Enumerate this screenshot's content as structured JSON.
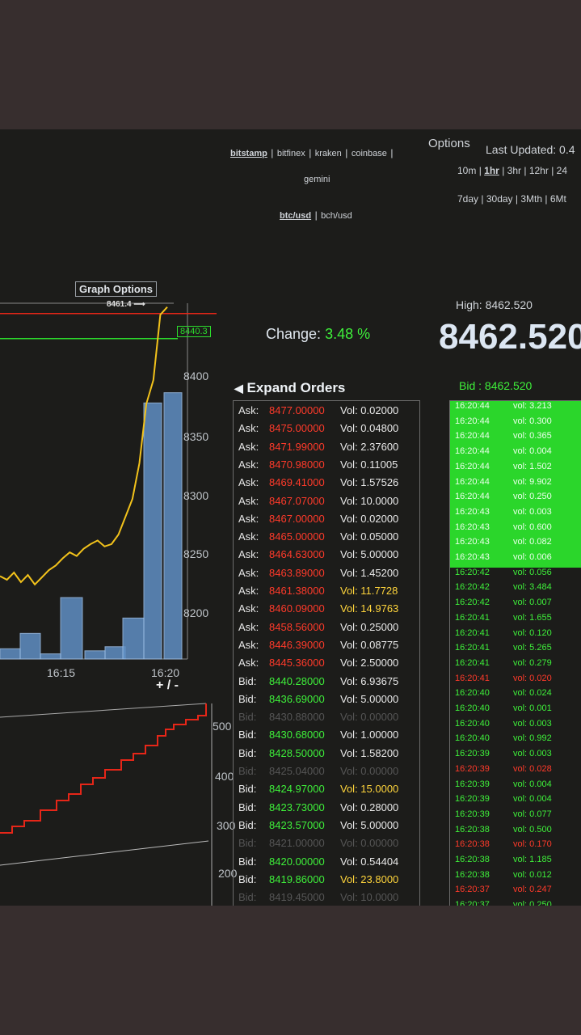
{
  "exchanges": [
    "bitstamp",
    "bitfinex",
    "kraken",
    "coinbase",
    "gemini"
  ],
  "pairs": [
    "btc/usd",
    "bch/usd"
  ],
  "options_label": "Options",
  "last_updated": "Last Updated: 0.4",
  "timeframes_row1": [
    "10m",
    "1hr",
    "3hr",
    "12hr",
    "24"
  ],
  "timeframes_row2": [
    "7day",
    "30day",
    "3Mth",
    "6Mt"
  ],
  "graph": {
    "options_label": "Graph Options",
    "pointer_label": "8461.4 ⟶",
    "price_tag": "8440.3",
    "zoom_label": "+ / -",
    "price_ticks": [
      "8400",
      "8350",
      "8300",
      "8250",
      "8200"
    ],
    "time_ticks": [
      "16:15",
      "16:20"
    ],
    "depth_ticks": [
      "500",
      "400",
      "300",
      "200"
    ]
  },
  "chart_data": {
    "type": "line",
    "xlabel": "",
    "ylabel": "",
    "x_ticks": [
      "16:15",
      "16:20"
    ],
    "y_ticks": [
      8400,
      8350,
      8300,
      8250,
      8200
    ],
    "price_series": [
      8235,
      8232,
      8238,
      8230,
      8236,
      8228,
      8234,
      8240,
      8244,
      8250,
      8255,
      8252,
      8258,
      8262,
      8265,
      8260,
      8262,
      8270,
      8285,
      8300,
      8330,
      8380,
      8400,
      8455,
      8461.4
    ],
    "reference_lines": [
      8461.4,
      8440.3
    ],
    "volume_bars": [
      10,
      25,
      5,
      60,
      8,
      12,
      40,
      250,
      260
    ]
  },
  "summary": {
    "high_label": "High: 8462.520",
    "change_label": "Change:",
    "change_value": "3.48 %",
    "last_price": "8462.520",
    "bid_label": "Bid : 8462.520"
  },
  "orders": {
    "header": "Expand Orders",
    "rows": [
      {
        "type": "Ask:",
        "price": "8477.00000",
        "vol": "Vol: 0.02000",
        "side": "ask",
        "dim": false,
        "big": false
      },
      {
        "type": "Ask:",
        "price": "8475.00000",
        "vol": "Vol: 0.04800",
        "side": "ask",
        "dim": false,
        "big": false
      },
      {
        "type": "Ask:",
        "price": "8471.99000",
        "vol": "Vol: 2.37600",
        "side": "ask",
        "dim": false,
        "big": false
      },
      {
        "type": "Ask:",
        "price": "8470.98000",
        "vol": "Vol: 0.11005",
        "side": "ask",
        "dim": false,
        "big": false
      },
      {
        "type": "Ask:",
        "price": "8469.41000",
        "vol": "Vol: 1.57526",
        "side": "ask",
        "dim": false,
        "big": false
      },
      {
        "type": "Ask:",
        "price": "8467.07000",
        "vol": "Vol: 10.0000",
        "side": "ask",
        "dim": false,
        "big": false
      },
      {
        "type": "Ask:",
        "price": "8467.00000",
        "vol": "Vol: 0.02000",
        "side": "ask",
        "dim": false,
        "big": false
      },
      {
        "type": "Ask:",
        "price": "8465.00000",
        "vol": "Vol: 0.05000",
        "side": "ask",
        "dim": false,
        "big": false
      },
      {
        "type": "Ask:",
        "price": "8464.63000",
        "vol": "Vol: 5.00000",
        "side": "ask",
        "dim": false,
        "big": false
      },
      {
        "type": "Ask:",
        "price": "8463.89000",
        "vol": "Vol: 1.45200",
        "side": "ask",
        "dim": false,
        "big": false
      },
      {
        "type": "Ask:",
        "price": "8461.38000",
        "vol": "Vol: 11.7728",
        "side": "ask",
        "dim": false,
        "big": true
      },
      {
        "type": "Ask:",
        "price": "8460.09000",
        "vol": "Vol: 14.9763",
        "side": "ask",
        "dim": false,
        "big": true
      },
      {
        "type": "Ask:",
        "price": "8458.56000",
        "vol": "Vol: 0.25000",
        "side": "ask",
        "dim": false,
        "big": false
      },
      {
        "type": "Ask:",
        "price": "8446.39000",
        "vol": "Vol: 0.08775",
        "side": "ask",
        "dim": false,
        "big": false
      },
      {
        "type": "Ask:",
        "price": "8445.36000",
        "vol": "Vol: 2.50000",
        "side": "ask",
        "dim": false,
        "big": false
      },
      {
        "type": "Bid:",
        "price": "8440.28000",
        "vol": "Vol: 6.93675",
        "side": "bid",
        "dim": false,
        "big": false
      },
      {
        "type": "Bid:",
        "price": "8436.69000",
        "vol": "Vol: 5.00000",
        "side": "bid",
        "dim": false,
        "big": false
      },
      {
        "type": "Bid:",
        "price": "8430.88000",
        "vol": "Vol: 0.00000",
        "side": "bid",
        "dim": true,
        "big": false
      },
      {
        "type": "Bid:",
        "price": "8430.68000",
        "vol": "Vol: 1.00000",
        "side": "bid",
        "dim": false,
        "big": false
      },
      {
        "type": "Bid:",
        "price": "8428.50000",
        "vol": "Vol: 1.58200",
        "side": "bid",
        "dim": false,
        "big": false
      },
      {
        "type": "Bid:",
        "price": "8425.04000",
        "vol": "Vol: 0.00000",
        "side": "bid",
        "dim": true,
        "big": false
      },
      {
        "type": "Bid:",
        "price": "8424.97000",
        "vol": "Vol: 15.0000",
        "side": "bid",
        "dim": false,
        "big": true
      },
      {
        "type": "Bid:",
        "price": "8423.73000",
        "vol": "Vol: 0.28000",
        "side": "bid",
        "dim": false,
        "big": false
      },
      {
        "type": "Bid:",
        "price": "8423.57000",
        "vol": "Vol: 5.00000",
        "side": "bid",
        "dim": false,
        "big": false
      },
      {
        "type": "Bid:",
        "price": "8421.00000",
        "vol": "Vol: 0.00000",
        "side": "bid",
        "dim": true,
        "big": false
      },
      {
        "type": "Bid:",
        "price": "8420.00000",
        "vol": "Vol: 0.54404",
        "side": "bid",
        "dim": false,
        "big": false
      },
      {
        "type": "Bid:",
        "price": "8419.86000",
        "vol": "Vol: 23.8000",
        "side": "bid",
        "dim": false,
        "big": true
      },
      {
        "type": "Bid:",
        "price": "8419.45000",
        "vol": "Vol: 10.0000",
        "side": "bid",
        "dim": true,
        "big": false
      }
    ]
  },
  "trades": [
    {
      "time": "16:20:44",
      "vol": "vol: 3.213",
      "side": "buy",
      "hl": true
    },
    {
      "time": "16:20:44",
      "vol": "vol: 0.300",
      "side": "buy",
      "hl": true
    },
    {
      "time": "16:20:44",
      "vol": "vol: 0.365",
      "side": "buy",
      "hl": true
    },
    {
      "time": "16:20:44",
      "vol": "vol: 0.004",
      "side": "buy",
      "hl": true
    },
    {
      "time": "16:20:44",
      "vol": "vol: 1.502",
      "side": "buy",
      "hl": true
    },
    {
      "time": "16:20:44",
      "vol": "vol: 9.902",
      "side": "buy",
      "hl": true
    },
    {
      "time": "16:20:44",
      "vol": "vol: 0.250",
      "side": "buy",
      "hl": true
    },
    {
      "time": "16:20:43",
      "vol": "vol: 0.003",
      "side": "buy",
      "hl": true
    },
    {
      "time": "16:20:43",
      "vol": "vol: 0.600",
      "side": "buy",
      "hl": true
    },
    {
      "time": "16:20:43",
      "vol": "vol: 0.082",
      "side": "buy",
      "hl": true
    },
    {
      "time": "16:20:43",
      "vol": "vol: 0.006",
      "side": "buy",
      "hl": true
    },
    {
      "time": "16:20:42",
      "vol": "vol: 0.056",
      "side": "buy",
      "hl": false
    },
    {
      "time": "16:20:42",
      "vol": "vol: 3.484",
      "side": "buy",
      "hl": false
    },
    {
      "time": "16:20:42",
      "vol": "vol: 0.007",
      "side": "buy",
      "hl": false
    },
    {
      "time": "16:20:41",
      "vol": "vol: 1.655",
      "side": "buy",
      "hl": false
    },
    {
      "time": "16:20:41",
      "vol": "vol: 0.120",
      "side": "buy",
      "hl": false
    },
    {
      "time": "16:20:41",
      "vol": "vol: 5.265",
      "side": "buy",
      "hl": false
    },
    {
      "time": "16:20:41",
      "vol": "vol: 0.279",
      "side": "buy",
      "hl": false
    },
    {
      "time": "16:20:41",
      "vol": "vol: 0.020",
      "side": "sell",
      "hl": false
    },
    {
      "time": "16:20:40",
      "vol": "vol: 0.024",
      "side": "buy",
      "hl": false
    },
    {
      "time": "16:20:40",
      "vol": "vol: 0.001",
      "side": "buy",
      "hl": false
    },
    {
      "time": "16:20:40",
      "vol": "vol: 0.003",
      "side": "buy",
      "hl": false
    },
    {
      "time": "16:20:40",
      "vol": "vol: 0.992",
      "side": "buy",
      "hl": false
    },
    {
      "time": "16:20:39",
      "vol": "vol: 0.003",
      "side": "buy",
      "hl": false
    },
    {
      "time": "16:20:39",
      "vol": "vol: 0.028",
      "side": "sell",
      "hl": false
    },
    {
      "time": "16:20:39",
      "vol": "vol: 0.004",
      "side": "buy",
      "hl": false
    },
    {
      "time": "16:20:39",
      "vol": "vol: 0.004",
      "side": "buy",
      "hl": false
    },
    {
      "time": "16:20:39",
      "vol": "vol: 0.077",
      "side": "buy",
      "hl": false
    },
    {
      "time": "16:20:38",
      "vol": "vol: 0.500",
      "side": "buy",
      "hl": false
    },
    {
      "time": "16:20:38",
      "vol": "vol: 0.170",
      "side": "sell",
      "hl": false
    },
    {
      "time": "16:20:38",
      "vol": "vol: 1.185",
      "side": "buy",
      "hl": false
    },
    {
      "time": "16:20:38",
      "vol": "vol: 0.012",
      "side": "buy",
      "hl": false
    },
    {
      "time": "16:20:37",
      "vol": "vol: 0.247",
      "side": "sell",
      "hl": false
    },
    {
      "time": "16:20:37",
      "vol": "vol: 0.250",
      "side": "buy",
      "hl": false
    }
  ],
  "colors": {
    "ask": "#ff3a2a",
    "bid": "#3ef03a",
    "highlight_vol": "#ffd53c",
    "price_line": "#f2c21b",
    "volume_bar": "#5f8fc4",
    "depth_line": "#e62618"
  }
}
